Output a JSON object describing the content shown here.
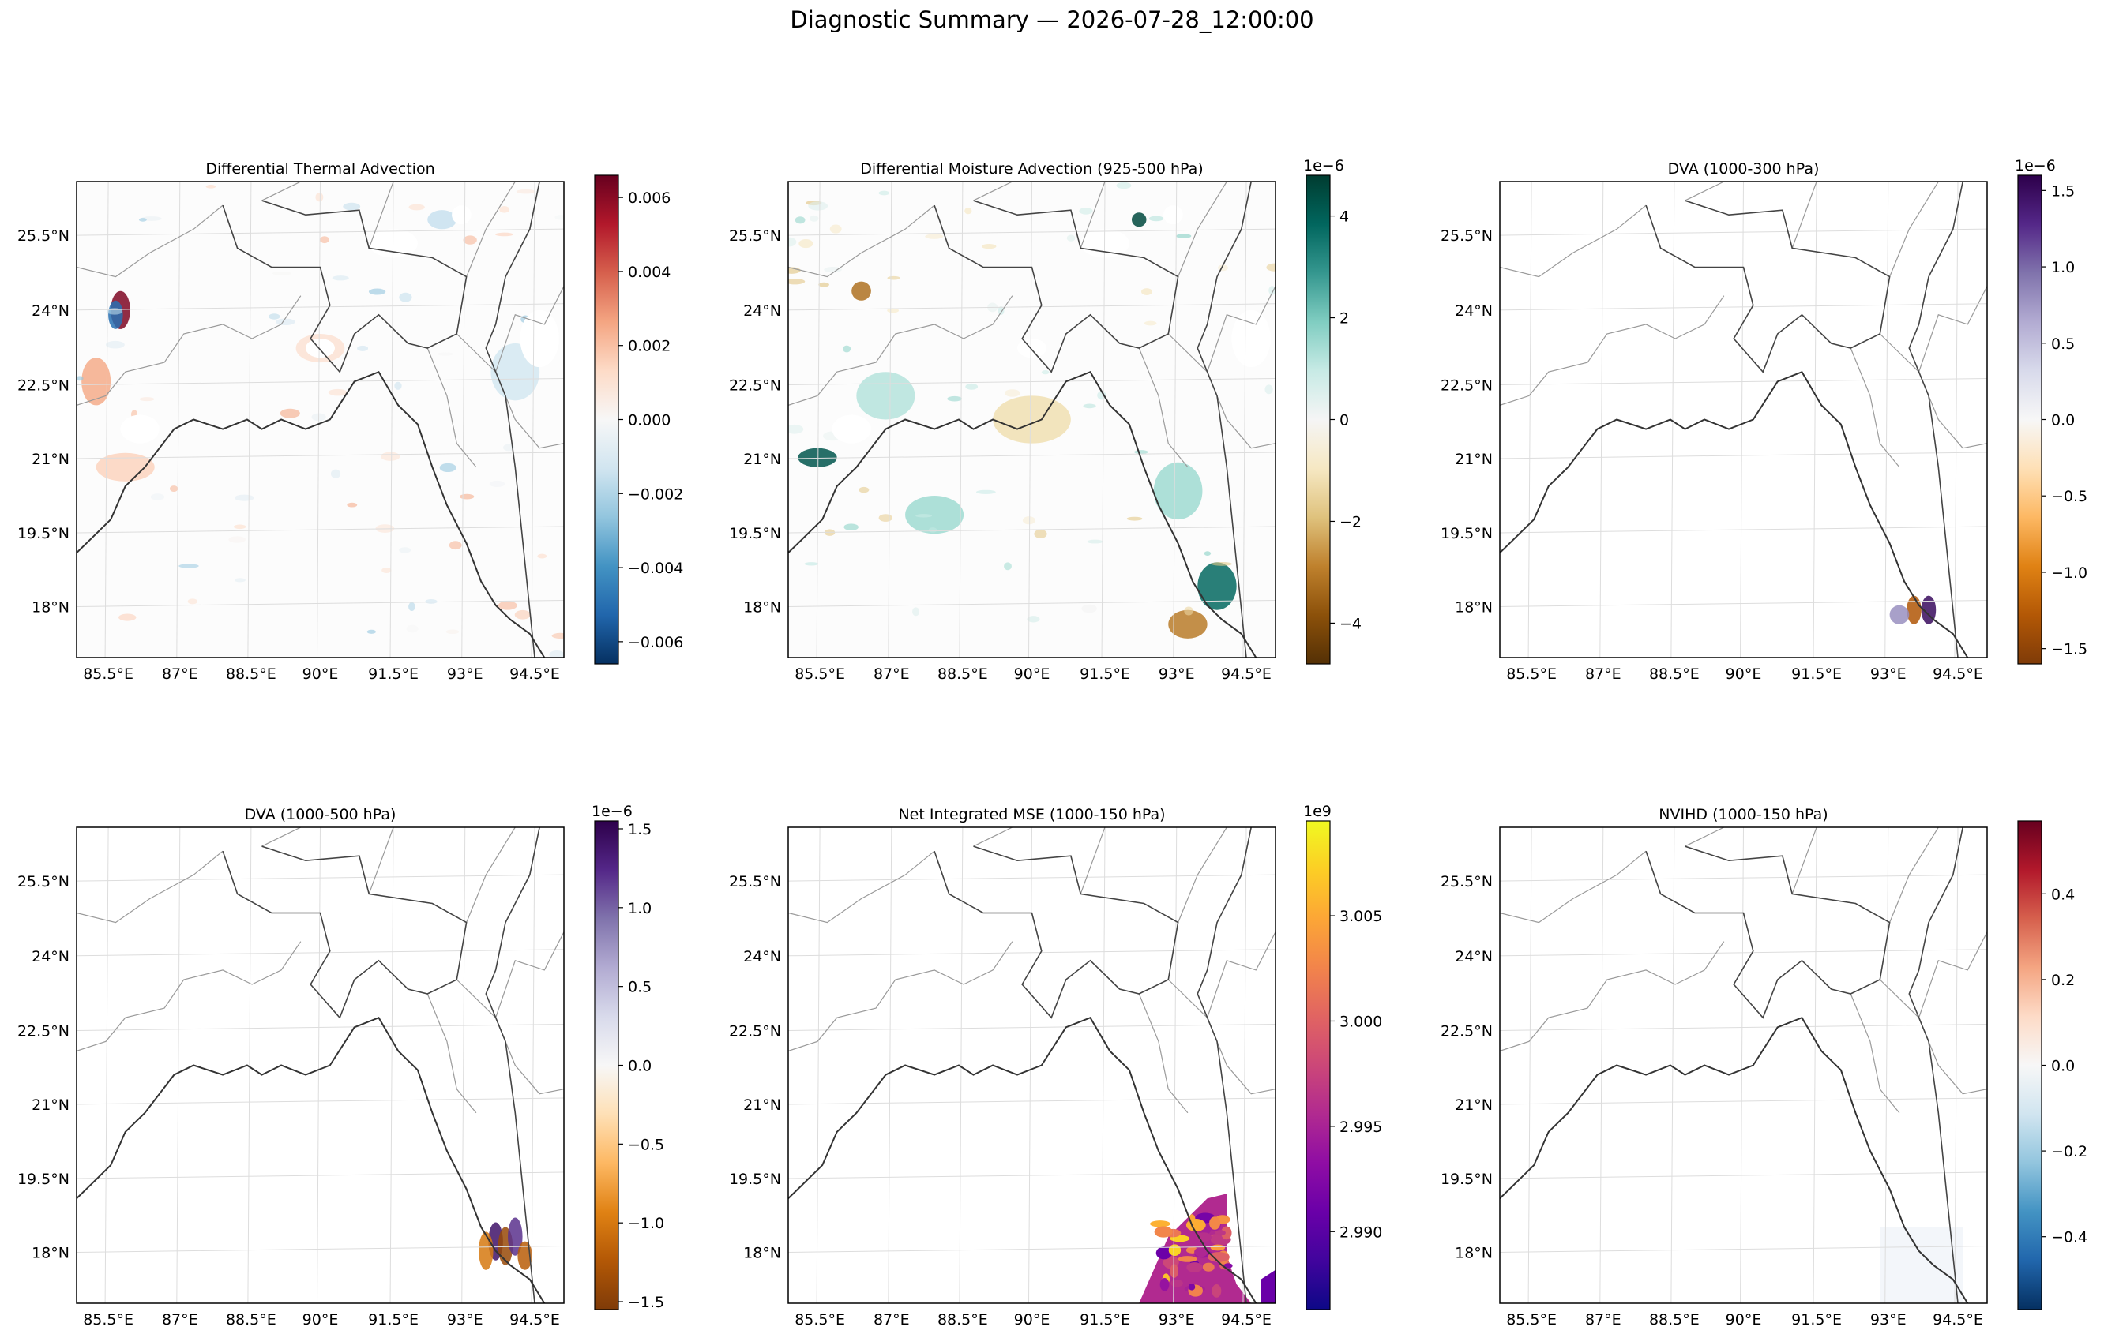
{
  "suptitle": "Diagnostic Summary — 2026-07-28_12:00:00",
  "shared_axes": {
    "xticks": [
      "85.5°E",
      "87°E",
      "88.5°E",
      "90°E",
      "91.5°E",
      "93°E",
      "94.5°E"
    ],
    "yticks": [
      "25.5°N",
      "24°N",
      "22.5°N",
      "21°N",
      "19.5°N",
      "18°N"
    ]
  },
  "chart_data": [
    {
      "type": "heatmap",
      "title": "Differential Thermal Advection",
      "colormap": [
        "#053061",
        "#2166ac",
        "#4393c3",
        "#92c5de",
        "#d1e5f0",
        "#f7f7f7",
        "#fddbc7",
        "#f4a582",
        "#d6604d",
        "#b2182b",
        "#67001f"
      ],
      "vmin": -0.0066,
      "vmax": 0.0066,
      "colorbar_ticks": [
        -0.006,
        -0.004,
        -0.002,
        0.0,
        0.002,
        0.004,
        0.006
      ],
      "colorbar_ticklabels": [
        "−0.006",
        "−0.004",
        "−0.002",
        "0.000",
        "0.002",
        "0.004",
        "0.006"
      ],
      "offset_label": ""
    },
    {
      "type": "heatmap",
      "title": "Differential Moisture Advection (925-500 hPa)",
      "colormap": [
        "#543005",
        "#8c510a",
        "#bf812d",
        "#dfc27d",
        "#f6e8c3",
        "#f5f5f5",
        "#c7eae5",
        "#80cdc1",
        "#35978f",
        "#01665e",
        "#003c30"
      ],
      "vmin": -4.8,
      "vmax": 4.8,
      "colorbar_ticks": [
        -4,
        -2,
        0,
        2,
        4
      ],
      "colorbar_ticklabels": [
        "−4",
        "−2",
        "0",
        "2",
        "4"
      ],
      "offset_label": "1e−6"
    },
    {
      "type": "heatmap",
      "title": "DVA (1000-300 hPa)",
      "colormap": [
        "#7f3b08",
        "#b35806",
        "#e08214",
        "#fdb863",
        "#fee0b6",
        "#f7f7f7",
        "#d8daeb",
        "#b2abd2",
        "#8073ac",
        "#542788",
        "#2d004b"
      ],
      "vmin": -1.6,
      "vmax": 1.6,
      "colorbar_ticks": [
        -1.5,
        -1.0,
        -0.5,
        0.0,
        0.5,
        1.0,
        1.5
      ],
      "colorbar_ticklabels": [
        "−1.5",
        "−1.0",
        "−0.5",
        "0.0",
        "0.5",
        "1.0",
        "1.5"
      ],
      "offset_label": "1e−6"
    },
    {
      "type": "heatmap",
      "title": "DVA (1000-500 hPa)",
      "colormap": [
        "#7f3b08",
        "#b35806",
        "#e08214",
        "#fdb863",
        "#fee0b6",
        "#f7f7f7",
        "#d8daeb",
        "#b2abd2",
        "#8073ac",
        "#542788",
        "#2d004b"
      ],
      "vmin": -1.55,
      "vmax": 1.55,
      "colorbar_ticks": [
        -1.5,
        -1.0,
        -0.5,
        0.0,
        0.5,
        1.0,
        1.5
      ],
      "colorbar_ticklabels": [
        "−1.5",
        "−1.0",
        "−0.5",
        "0.0",
        "0.5",
        "1.0",
        "1.5"
      ],
      "offset_label": "1e−6"
    },
    {
      "type": "heatmap",
      "title": "Net Integrated MSE (1000-150 hPa)",
      "colormap": [
        "#0d0887",
        "#41049d",
        "#6a00a8",
        "#8f0da4",
        "#b12a90",
        "#cc4778",
        "#e16462",
        "#f2844b",
        "#fca636",
        "#fcce25",
        "#f0f921"
      ],
      "vmin": 2.9863,
      "vmax": 3.0095,
      "colorbar_ticks": [
        2.99,
        2.995,
        3.0,
        3.005
      ],
      "colorbar_ticklabels": [
        "2.990",
        "2.995",
        "3.000",
        "3.005"
      ],
      "offset_label": "1e9"
    },
    {
      "type": "heatmap",
      "title": "NVIHD (1000-150 hPa)",
      "colormap": [
        "#053061",
        "#2166ac",
        "#4393c3",
        "#92c5de",
        "#d1e5f0",
        "#f7f7f7",
        "#fddbc7",
        "#f4a582",
        "#d6604d",
        "#b2182b",
        "#67001f"
      ],
      "vmin": -0.57,
      "vmax": 0.57,
      "colorbar_ticks": [
        -0.4,
        -0.2,
        0.0,
        0.2,
        0.4
      ],
      "colorbar_ticklabels": [
        "−0.4",
        "−0.2",
        "0.0",
        "0.2",
        "0.4"
      ],
      "offset_label": ""
    }
  ]
}
